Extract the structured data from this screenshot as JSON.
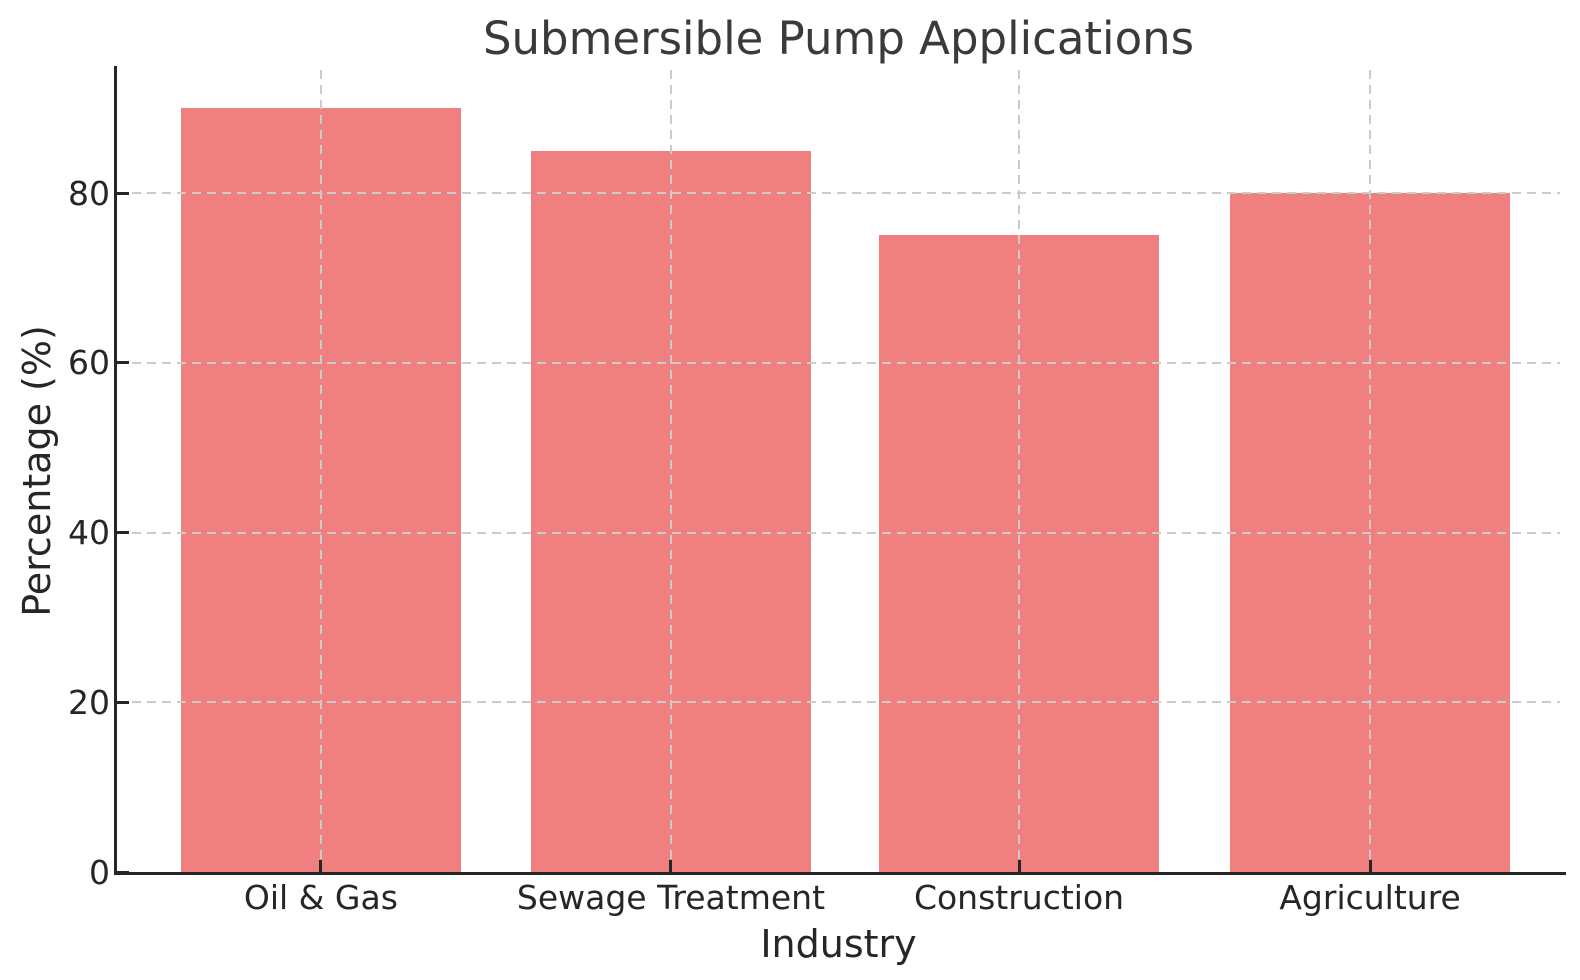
{
  "figure": {
    "title": "Submersible Pump Applications"
  },
  "chart_data": {
    "type": "bar",
    "title": "Submersible Pump Applications",
    "xlabel": "Industry",
    "ylabel": "Percentage (%)",
    "categories": [
      "Oil & Gas",
      "Sewage Treatment",
      "Construction",
      "Agriculture"
    ],
    "values": [
      90,
      85,
      75,
      80
    ],
    "yticks": [
      0,
      20,
      40,
      60,
      80
    ],
    "ylim": [
      0,
      94.5
    ],
    "legend": "none",
    "grid": "dashed gridlines on both axes, drawn in front of bars",
    "spines": "left and bottom only, ticks point inward",
    "colors": {
      "bar": "#F08080",
      "grid": "#CBCBCB",
      "axis": "#262626",
      "title_text": "#3A3A3A",
      "background": "#FFFFFF"
    }
  }
}
